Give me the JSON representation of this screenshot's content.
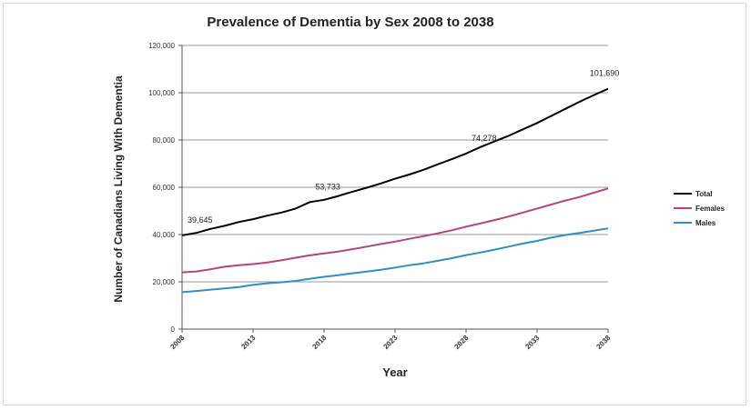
{
  "chart_data": {
    "type": "line",
    "title": "Prevalence of Dementia by Sex 2008 to 2038",
    "xlabel": "Year",
    "ylabel": "Number of Canadians Living With Dementia",
    "ylim": [
      0,
      120000
    ],
    "yticks": [
      0,
      20000,
      40000,
      60000,
      80000,
      100000,
      120000
    ],
    "ytick_labels": [
      "0",
      "20,000",
      "40,000",
      "60,000",
      "80,000",
      "100,000",
      "120,000"
    ],
    "xlim": [
      2008,
      2038
    ],
    "xticks": [
      2008,
      2013,
      2018,
      2023,
      2028,
      2033,
      2038
    ],
    "grid": true,
    "legend": "right",
    "colors": {
      "Total": "#000000",
      "Females": "#b5447a",
      "Males": "#2e90c4"
    },
    "x": [
      2008,
      2009,
      2010,
      2011,
      2012,
      2013,
      2014,
      2015,
      2016,
      2017,
      2018,
      2019,
      2020,
      2021,
      2022,
      2023,
      2024,
      2025,
      2026,
      2027,
      2028,
      2029,
      2030,
      2031,
      2032,
      2033,
      2034,
      2035,
      2036,
      2037,
      2038
    ],
    "series": [
      {
        "name": "Total",
        "values": [
          39645,
          40700,
          42400,
          43700,
          45300,
          46500,
          48000,
          49300,
          51000,
          53733,
          54700,
          56300,
          58100,
          59800,
          61600,
          63600,
          65400,
          67400,
          69700,
          71900,
          74278,
          77000,
          79400,
          81800,
          84500,
          87200,
          90200,
          93200,
          96200,
          99000,
          101690
        ]
      },
      {
        "name": "Females",
        "values": [
          24000,
          24400,
          25300,
          26400,
          27000,
          27500,
          28200,
          29100,
          30200,
          31200,
          32000,
          32800,
          33800,
          34900,
          36000,
          37000,
          38200,
          39300,
          40500,
          41800,
          43300,
          44700,
          46100,
          47600,
          49300,
          51000,
          52700,
          54400,
          55900,
          57700,
          59500
        ]
      },
      {
        "name": "Males",
        "values": [
          15600,
          16100,
          16700,
          17200,
          17800,
          18700,
          19400,
          19800,
          20400,
          21300,
          22100,
          22800,
          23600,
          24300,
          25100,
          26000,
          27000,
          27800,
          28900,
          30000,
          31300,
          32400,
          33600,
          34900,
          36200,
          37300,
          38700,
          39800,
          40700,
          41600,
          42600
        ]
      }
    ],
    "annotations": [
      {
        "x": 2008,
        "y": 39645,
        "text": "39,645"
      },
      {
        "x": 2017,
        "y": 53733,
        "text": "53,733"
      },
      {
        "x": 2028,
        "y": 74278,
        "text": "74,278"
      },
      {
        "x": 2038,
        "y": 101690,
        "text": "101,690"
      }
    ]
  }
}
